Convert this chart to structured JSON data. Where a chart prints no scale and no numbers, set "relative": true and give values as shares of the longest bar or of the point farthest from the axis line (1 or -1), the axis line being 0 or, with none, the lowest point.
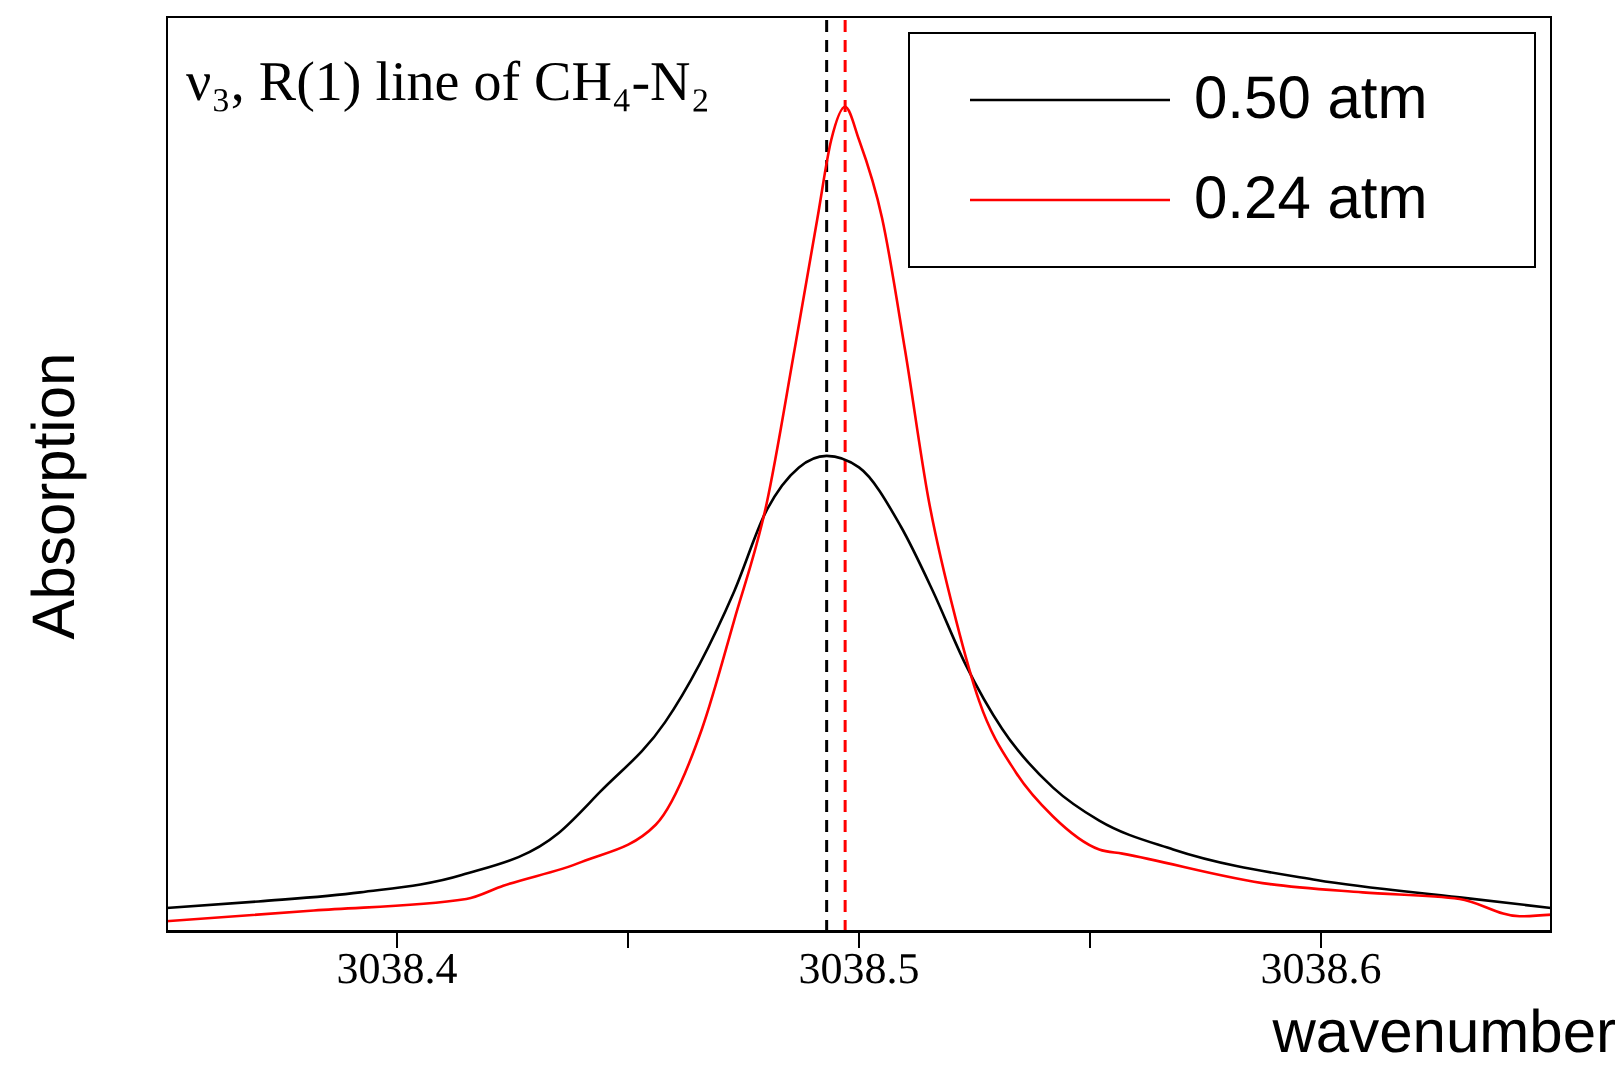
{
  "chart_data": {
    "type": "line",
    "title": "ν₃, R(1) line of CH₄-N₂",
    "xlabel": "wavenumber",
    "ylabel": "Absorption",
    "relative": true,
    "legend": "top right",
    "marker": "none",
    "line_style": "solid",
    "xlim": [
      3038.35,
      3038.65
    ],
    "xticks": [
      3038.4,
      {
        "value": 3038.45,
        "label": null
      },
      3038.5,
      {
        "value": 3038.55,
        "label": null
      },
      3038.6
    ],
    "series": [
      {
        "name": "0.50 atm",
        "color": "#000000",
        "x": [
          3038.35,
          3038.37,
          3038.392,
          3038.414,
          3038.435,
          3038.444,
          3038.458,
          3038.473,
          3038.48,
          3038.487,
          3038.493,
          3038.5,
          3038.509,
          3038.516,
          3038.523,
          3038.531,
          3038.542,
          3038.552,
          3038.568,
          3038.599,
          3038.63,
          3038.65
        ],
        "values": [
          0.029,
          0.037,
          0.048,
          0.069,
          0.12,
          0.17,
          0.254,
          0.413,
          0.511,
          0.563,
          0.577,
          0.563,
          0.492,
          0.413,
          0.325,
          0.246,
          0.175,
          0.135,
          0.1,
          0.063,
          0.042,
          0.029
        ]
      },
      {
        "name": "0.24 atm",
        "color": "#ff0000",
        "x": [
          3038.35,
          3038.382,
          3038.415,
          3038.423,
          3038.44,
          3038.456,
          3038.466,
          3038.473,
          3038.48,
          3038.486,
          3038.491,
          3038.494,
          3038.497,
          3038.5,
          3038.505,
          3038.51,
          3038.515,
          3038.521,
          3038.526,
          3038.534,
          3038.542,
          3038.552,
          3038.557,
          3038.589,
          3038.609,
          3038.63,
          3038.643,
          3038.65
        ],
        "values": [
          0.013,
          0.026,
          0.04,
          0.056,
          0.085,
          0.13,
          0.246,
          0.378,
          0.519,
          0.704,
          0.865,
          0.96,
          1,
          0.96,
          0.865,
          0.704,
          0.526,
          0.378,
          0.28,
          0.193,
          0.14,
          0.1,
          0.095,
          0.058,
          0.048,
          0.04,
          0.019,
          0.021
        ]
      }
    ],
    "ref_lines": [
      {
        "axis": "x",
        "value": 3038.493,
        "color": "#000000",
        "line_style": "dashed"
      },
      {
        "axis": "x",
        "value": 3038.497,
        "color": "#ff0000",
        "line_style": "dashed"
      }
    ]
  }
}
